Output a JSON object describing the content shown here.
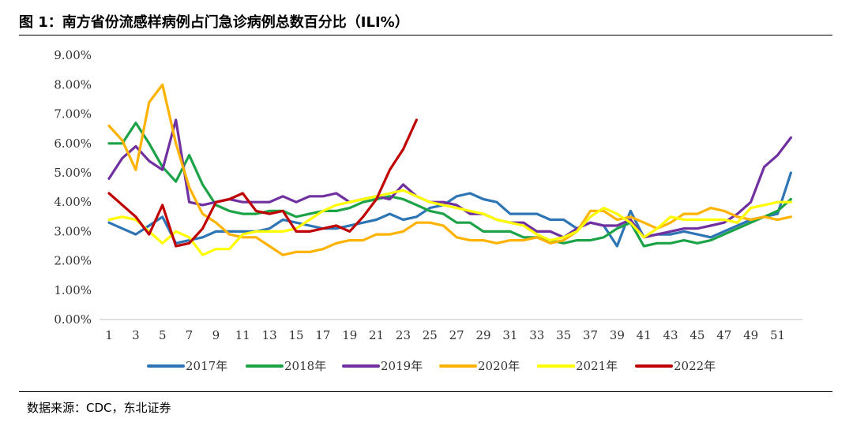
{
  "header": {
    "title": "图 1：南方省份流感样病例占门急诊病例总数百分比（ILI%）"
  },
  "footer": {
    "source": "数据来源：CDC，东北证券"
  },
  "chart_data": {
    "type": "line",
    "title": "图 1：南方省份流感样病例占门急诊病例总数百分比（ILI%）",
    "xlabel": "",
    "ylabel": "",
    "x_range": [
      1,
      52
    ],
    "x_ticks": [
      1,
      3,
      5,
      7,
      9,
      11,
      13,
      15,
      17,
      19,
      21,
      23,
      25,
      27,
      29,
      31,
      33,
      35,
      37,
      39,
      41,
      43,
      45,
      47,
      49,
      51
    ],
    "ylim": [
      0,
      9
    ],
    "y_ticks": [
      "0.00%",
      "1.00%",
      "2.00%",
      "3.00%",
      "4.00%",
      "5.00%",
      "6.00%",
      "7.00%",
      "8.00%",
      "9.00%"
    ],
    "grid": false,
    "legend_position": "bottom",
    "series": [
      {
        "name": "2017年",
        "color": "#2E75B6",
        "values": [
          3.3,
          3.1,
          2.9,
          3.2,
          3.5,
          2.6,
          2.7,
          2.8,
          3.0,
          3.0,
          3.0,
          3.0,
          3.1,
          3.4,
          3.3,
          3.2,
          3.1,
          3.1,
          3.2,
          3.3,
          3.4,
          3.6,
          3.4,
          3.5,
          3.8,
          3.9,
          4.2,
          4.3,
          4.1,
          4.0,
          3.6,
          3.6,
          3.6,
          3.4,
          3.4,
          3.1,
          3.3,
          3.2,
          2.5,
          3.7,
          2.8,
          2.9,
          2.9,
          3.0,
          2.9,
          2.8,
          3.0,
          3.2,
          3.4,
          3.5,
          3.6,
          5.0
        ]
      },
      {
        "name": "2018年",
        "color": "#1DA347",
        "values": [
          6.0,
          6.0,
          6.7,
          6.0,
          5.2,
          4.7,
          5.6,
          4.6,
          3.9,
          3.7,
          3.6,
          3.6,
          3.7,
          3.7,
          3.5,
          3.6,
          3.7,
          3.7,
          3.8,
          4.0,
          4.1,
          4.2,
          4.1,
          3.9,
          3.7,
          3.6,
          3.3,
          3.3,
          3.0,
          3.0,
          3.0,
          2.8,
          2.8,
          2.7,
          2.6,
          2.7,
          2.7,
          2.8,
          3.1,
          3.3,
          2.5,
          2.6,
          2.6,
          2.7,
          2.6,
          2.7,
          2.9,
          3.1,
          3.3,
          3.5,
          3.7,
          4.1
        ]
      },
      {
        "name": "2019年",
        "color": "#7030A0",
        "values": [
          4.8,
          5.5,
          5.9,
          5.4,
          5.1,
          6.8,
          4.0,
          3.9,
          4.0,
          4.1,
          4.0,
          4.0,
          4.0,
          4.2,
          4.0,
          4.2,
          4.2,
          4.3,
          4.0,
          4.1,
          4.2,
          4.1,
          4.6,
          4.2,
          4.0,
          4.0,
          3.9,
          3.6,
          3.6,
          3.4,
          3.3,
          3.3,
          3.0,
          3.0,
          2.8,
          3.1,
          3.3,
          3.2,
          3.2,
          3.4,
          2.8,
          2.9,
          3.0,
          3.1,
          3.1,
          3.2,
          3.3,
          3.6,
          4.0,
          5.2,
          5.6,
          6.2
        ]
      },
      {
        "name": "2020年",
        "color": "#FFB300",
        "values": [
          6.6,
          6.1,
          5.1,
          7.4,
          8.0,
          6.0,
          4.5,
          3.6,
          3.3,
          2.9,
          2.8,
          2.8,
          2.5,
          2.2,
          2.3,
          2.3,
          2.4,
          2.6,
          2.7,
          2.7,
          2.9,
          2.9,
          3.0,
          3.3,
          3.3,
          3.2,
          2.8,
          2.7,
          2.7,
          2.6,
          2.7,
          2.7,
          2.8,
          2.6,
          2.7,
          3.0,
          3.7,
          3.7,
          3.4,
          3.5,
          3.3,
          3.1,
          3.3,
          3.6,
          3.6,
          3.8,
          3.7,
          3.5,
          3.4,
          3.5,
          3.4,
          3.5
        ]
      },
      {
        "name": "2021年",
        "color": "#FFFF00",
        "values": [
          3.4,
          3.5,
          3.4,
          3.0,
          2.6,
          3.0,
          2.8,
          2.2,
          2.4,
          2.4,
          2.9,
          3.0,
          3.0,
          3.0,
          3.1,
          3.4,
          3.7,
          3.9,
          4.0,
          4.1,
          4.2,
          4.3,
          4.4,
          4.2,
          4.0,
          3.9,
          3.8,
          3.7,
          3.6,
          3.4,
          3.3,
          3.2,
          2.9,
          2.7,
          2.8,
          3.0,
          3.5,
          3.8,
          3.6,
          3.3,
          2.8,
          3.1,
          3.5,
          3.4,
          3.4,
          3.4,
          3.4,
          3.3,
          3.8,
          3.9,
          4.0,
          4.0
        ]
      },
      {
        "name": "2022年",
        "color": "#C00000",
        "values": [
          4.3,
          3.9,
          3.5,
          2.9,
          3.9,
          2.5,
          2.6,
          3.1,
          4.0,
          4.1,
          4.3,
          3.7,
          3.6,
          3.7,
          3.0,
          3.0,
          3.1,
          3.2,
          3.0,
          3.5,
          4.1,
          5.1,
          5.8,
          6.8
        ]
      }
    ]
  }
}
